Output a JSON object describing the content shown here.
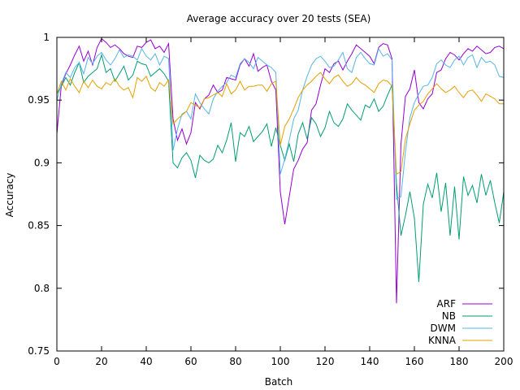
{
  "chart_data": {
    "type": "line",
    "title": "Average accuracy over 20 tests (SEA)",
    "xlabel": "Batch",
    "ylabel": "Accuracy",
    "xlim": [
      0,
      200
    ],
    "ylim": [
      0.75,
      1.0
    ],
    "xticks": [
      "0",
      "20",
      "40",
      "60",
      "80",
      "100",
      "120",
      "140",
      "160",
      "180",
      "200"
    ],
    "yticks": [
      "0.75",
      "0.8",
      "0.85",
      "0.9",
      "0.95",
      "1"
    ],
    "grid": false,
    "legend_position": "bottom-right",
    "x": [
      0,
      2,
      4,
      6,
      8,
      10,
      12,
      14,
      16,
      18,
      20,
      22,
      24,
      26,
      28,
      30,
      32,
      34,
      36,
      38,
      40,
      42,
      44,
      46,
      48,
      50,
      52,
      54,
      56,
      58,
      60,
      62,
      64,
      66,
      68,
      70,
      72,
      74,
      76,
      78,
      80,
      82,
      84,
      86,
      88,
      90,
      92,
      94,
      96,
      98,
      100,
      102,
      104,
      106,
      108,
      110,
      112,
      114,
      116,
      118,
      120,
      122,
      124,
      126,
      128,
      130,
      132,
      134,
      136,
      138,
      140,
      142,
      144,
      146,
      148,
      150,
      152,
      154,
      156,
      158,
      160,
      162,
      164,
      166,
      168,
      170,
      172,
      174,
      176,
      178,
      180,
      182,
      184,
      186,
      188,
      190,
      192,
      194,
      196,
      198,
      200
    ],
    "series": [
      {
        "name": "ARF",
        "color": "#9400d3",
        "values": [
          0.923,
          0.962,
          0.971,
          0.978,
          0.986,
          0.993,
          0.981,
          0.989,
          0.978,
          0.992,
          0.999,
          0.996,
          0.992,
          0.994,
          0.991,
          0.987,
          0.985,
          0.984,
          0.993,
          0.992,
          0.996,
          0.998,
          0.991,
          0.993,
          0.988,
          0.995,
          0.935,
          0.918,
          0.927,
          0.915,
          0.924,
          0.948,
          0.943,
          0.951,
          0.954,
          0.962,
          0.956,
          0.958,
          0.968,
          0.967,
          0.966,
          0.978,
          0.983,
          0.977,
          0.987,
          0.973,
          0.976,
          0.978,
          0.965,
          0.958,
          0.877,
          0.851,
          0.873,
          0.895,
          0.902,
          0.911,
          0.916,
          0.942,
          0.947,
          0.962,
          0.975,
          0.972,
          0.979,
          0.981,
          0.974,
          0.981,
          0.987,
          0.994,
          0.991,
          0.988,
          0.985,
          0.979,
          0.992,
          0.995,
          0.994,
          0.983,
          0.788,
          0.915,
          0.953,
          0.959,
          0.974,
          0.948,
          0.943,
          0.951,
          0.955,
          0.972,
          0.974,
          0.983,
          0.988,
          0.986,
          0.982,
          0.987,
          0.991,
          0.989,
          0.993,
          0.99,
          0.987,
          0.988,
          0.992,
          0.993,
          0.991
        ]
      },
      {
        "name": "NB",
        "color": "#009e73",
        "values": [
          0.955,
          0.961,
          0.968,
          0.962,
          0.972,
          0.98,
          0.964,
          0.969,
          0.972,
          0.975,
          0.986,
          0.972,
          0.975,
          0.965,
          0.971,
          0.977,
          0.966,
          0.97,
          0.981,
          0.979,
          0.978,
          0.969,
          0.972,
          0.975,
          0.971,
          0.965,
          0.9,
          0.896,
          0.904,
          0.908,
          0.902,
          0.888,
          0.906,
          0.902,
          0.9,
          0.903,
          0.914,
          0.908,
          0.918,
          0.932,
          0.901,
          0.924,
          0.921,
          0.929,
          0.917,
          0.921,
          0.925,
          0.931,
          0.913,
          0.928,
          0.914,
          0.902,
          0.915,
          0.901,
          0.923,
          0.932,
          0.919,
          0.936,
          0.931,
          0.921,
          0.928,
          0.941,
          0.932,
          0.929,
          0.935,
          0.947,
          0.942,
          0.938,
          0.934,
          0.946,
          0.944,
          0.951,
          0.941,
          0.945,
          0.954,
          0.962,
          0.883,
          0.842,
          0.858,
          0.877,
          0.856,
          0.805,
          0.867,
          0.883,
          0.872,
          0.892,
          0.861,
          0.884,
          0.842,
          0.881,
          0.839,
          0.889,
          0.874,
          0.882,
          0.868,
          0.891,
          0.874,
          0.886,
          0.868,
          0.852,
          0.877
        ]
      },
      {
        "name": "DWM",
        "color": "#56b4e9",
        "values": [
          0.95,
          0.963,
          0.972,
          0.968,
          0.976,
          0.98,
          0.971,
          0.984,
          0.979,
          0.985,
          0.988,
          0.982,
          0.978,
          0.983,
          0.99,
          0.984,
          0.986,
          0.985,
          0.982,
          0.991,
          0.985,
          0.982,
          0.987,
          0.978,
          0.985,
          0.983,
          0.91,
          0.927,
          0.939,
          0.941,
          0.935,
          0.955,
          0.948,
          0.943,
          0.939,
          0.951,
          0.957,
          0.961,
          0.964,
          0.97,
          0.968,
          0.979,
          0.983,
          0.98,
          0.975,
          0.984,
          0.981,
          0.978,
          0.976,
          0.972,
          0.891,
          0.903,
          0.918,
          0.935,
          0.942,
          0.958,
          0.969,
          0.978,
          0.983,
          0.985,
          0.981,
          0.976,
          0.977,
          0.982,
          0.988,
          0.975,
          0.972,
          0.984,
          0.988,
          0.983,
          0.979,
          0.978,
          0.991,
          0.985,
          0.987,
          0.982,
          0.871,
          0.873,
          0.909,
          0.936,
          0.948,
          0.955,
          0.961,
          0.962,
          0.968,
          0.979,
          0.982,
          0.978,
          0.976,
          0.982,
          0.985,
          0.978,
          0.984,
          0.986,
          0.976,
          0.984,
          0.98,
          0.981,
          0.978,
          0.969,
          0.968
        ]
      },
      {
        "name": "KNNA",
        "color": "#e69f00",
        "values": [
          0.955,
          0.965,
          0.958,
          0.967,
          0.961,
          0.956,
          0.965,
          0.96,
          0.966,
          0.961,
          0.959,
          0.964,
          0.962,
          0.967,
          0.961,
          0.958,
          0.96,
          0.952,
          0.968,
          0.965,
          0.969,
          0.96,
          0.957,
          0.964,
          0.961,
          0.966,
          0.931,
          0.935,
          0.938,
          0.941,
          0.948,
          0.946,
          0.944,
          0.951,
          0.952,
          0.954,
          0.956,
          0.953,
          0.963,
          0.955,
          0.958,
          0.965,
          0.958,
          0.961,
          0.961,
          0.962,
          0.962,
          0.957,
          0.963,
          0.965,
          0.914,
          0.929,
          0.935,
          0.943,
          0.952,
          0.958,
          0.962,
          0.965,
          0.969,
          0.972,
          0.967,
          0.963,
          0.968,
          0.97,
          0.965,
          0.961,
          0.963,
          0.968,
          0.964,
          0.962,
          0.959,
          0.956,
          0.963,
          0.966,
          0.965,
          0.961,
          0.891,
          0.893,
          0.919,
          0.931,
          0.942,
          0.946,
          0.949,
          0.955,
          0.959,
          0.963,
          0.959,
          0.956,
          0.958,
          0.961,
          0.956,
          0.952,
          0.957,
          0.958,
          0.954,
          0.949,
          0.955,
          0.953,
          0.951,
          0.947,
          0.947
        ]
      }
    ]
  }
}
